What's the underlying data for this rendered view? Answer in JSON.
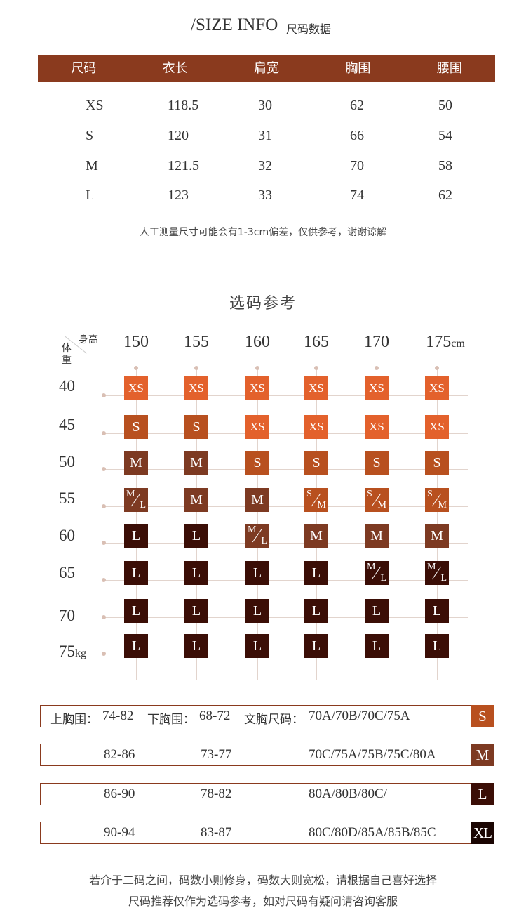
{
  "header": {
    "title_en": "/SIZE INFO",
    "title_cn": "尺码数据"
  },
  "size_table": {
    "columns": [
      "尺码",
      "衣长",
      "肩宽",
      "胸围",
      "腰围"
    ],
    "rows": [
      [
        "XS",
        "118.5",
        "30",
        "62",
        "50"
      ],
      [
        "S",
        "120",
        "31",
        "66",
        "54"
      ],
      [
        "M",
        "121.5",
        "32",
        "70",
        "58"
      ],
      [
        "L",
        "123",
        "33",
        "74",
        "62"
      ]
    ],
    "note": "人工测量尺寸可能会有1-3cm偏差，仅供参考，谢谢谅解"
  },
  "reference": {
    "title": "选码参考",
    "corner_height": "身高",
    "corner_weight_1": "体",
    "corner_weight_2": "重",
    "heights": [
      "150",
      "155",
      "160",
      "165",
      "170",
      "175"
    ],
    "height_unit": "cm",
    "weights": [
      "40",
      "45",
      "50",
      "55",
      "60",
      "65",
      "70",
      "75"
    ],
    "weight_unit": "kg",
    "grid": [
      [
        "XS",
        "XS",
        "XS",
        "XS",
        "XS",
        "XS"
      ],
      [
        "S",
        "S",
        "XS",
        "XS",
        "XS",
        "XS"
      ],
      [
        "M",
        "M",
        "S",
        "S",
        "S",
        "S"
      ],
      [
        "M/L",
        "M",
        "M",
        "S/M",
        "S/M",
        "S/M"
      ],
      [
        "L",
        "L",
        "M/L",
        "M",
        "M",
        "M"
      ],
      [
        "L",
        "L",
        "L",
        "L",
        "M/L",
        "M/L"
      ],
      [
        "L",
        "L",
        "L",
        "L",
        "L",
        "L"
      ],
      [
        "L",
        "L",
        "L",
        "L",
        "L",
        "L"
      ]
    ]
  },
  "bra": {
    "label_upper": "上胸围：",
    "label_lower": "下胸围：",
    "label_cup": "文胸尺码：",
    "rows": [
      {
        "upper": "74-82",
        "lower": "68-72",
        "cup": "70A/70B/70C/75A",
        "size": "S",
        "color": "#b8501f"
      },
      {
        "upper": "82-86",
        "lower": "73-77",
        "cup": "70C/75A/75B/75C/80A",
        "size": "M",
        "color": "#7d3a22"
      },
      {
        "upper": "86-90",
        "lower": "78-82",
        "cup": "80A/80B/80C/",
        "size": "L",
        "color": "#3b0e06"
      },
      {
        "upper": "90-94",
        "lower": "83-87",
        "cup": "80C/80D/85A/85B/85C",
        "size": "XL",
        "color": "#1a0502"
      }
    ]
  },
  "footer": {
    "line1": "若介于二码之间，码数小则修身，码数大则宽松，请根据自己喜好选择",
    "line2": "尺码推荐仅作为选码参考，如对尺码有疑问请咨询客服"
  },
  "colors": {
    "brand": "#8a3a1e",
    "xs": "#e3612c",
    "s": "#b8501f",
    "m": "#7d3a22",
    "l": "#3b0e06"
  }
}
